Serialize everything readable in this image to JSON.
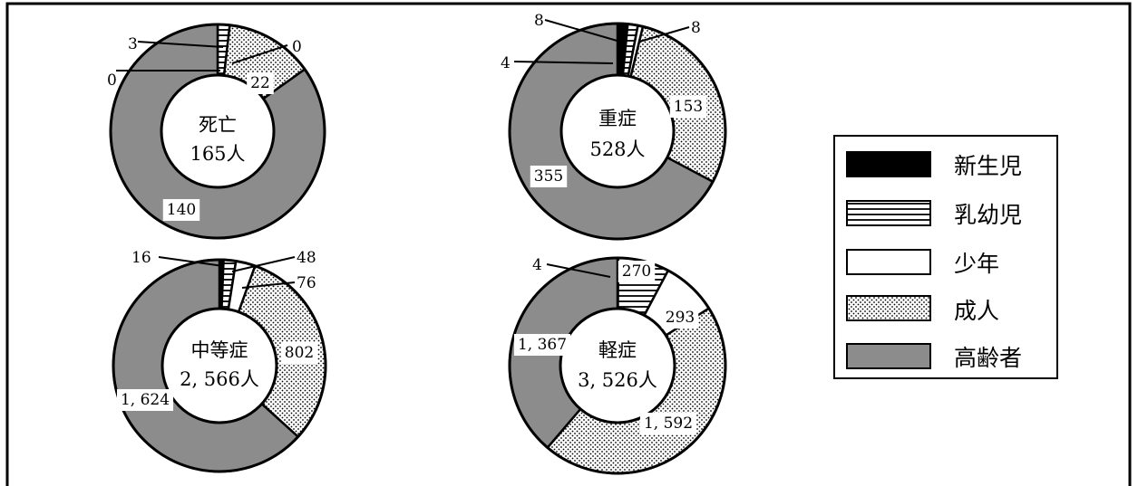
{
  "chart_data": {
    "type": "donut",
    "legend_position": "right",
    "legend": [
      {
        "key": "newborn",
        "label": "新生児",
        "fill": "#000000"
      },
      {
        "key": "infant",
        "label": "乳幼児",
        "fill": "stripes"
      },
      {
        "key": "youth",
        "label": "少年",
        "fill": "#ffffff"
      },
      {
        "key": "adult",
        "label": "成人",
        "fill": "dots"
      },
      {
        "key": "elderly",
        "label": "高齢者",
        "fill": "#8c8c8c"
      }
    ],
    "charts": [
      {
        "id": "death",
        "center_lines": [
          "死亡",
          "165人"
        ],
        "values": [
          0,
          3,
          0,
          22,
          140
        ],
        "labels": [
          "0",
          "3",
          "0",
          "22",
          "140"
        ]
      },
      {
        "id": "severe",
        "center_lines": [
          "重症",
          "528人"
        ],
        "values": [
          8,
          8,
          4,
          153,
          355
        ],
        "labels": [
          "8",
          "8",
          "4",
          "153",
          "355"
        ]
      },
      {
        "id": "moderate",
        "center_lines": [
          "中等症",
          "2, 566人"
        ],
        "values": [
          16,
          48,
          76,
          802,
          1624
        ],
        "labels": [
          "16",
          "48",
          "76",
          "802",
          "1, 624"
        ]
      },
      {
        "id": "mild",
        "center_lines": [
          "軽症",
          "3, 526人"
        ],
        "values": [
          4,
          270,
          293,
          1592,
          1367
        ],
        "labels": [
          "4",
          "270",
          "293",
          "1, 592",
          "1, 367"
        ]
      }
    ]
  }
}
